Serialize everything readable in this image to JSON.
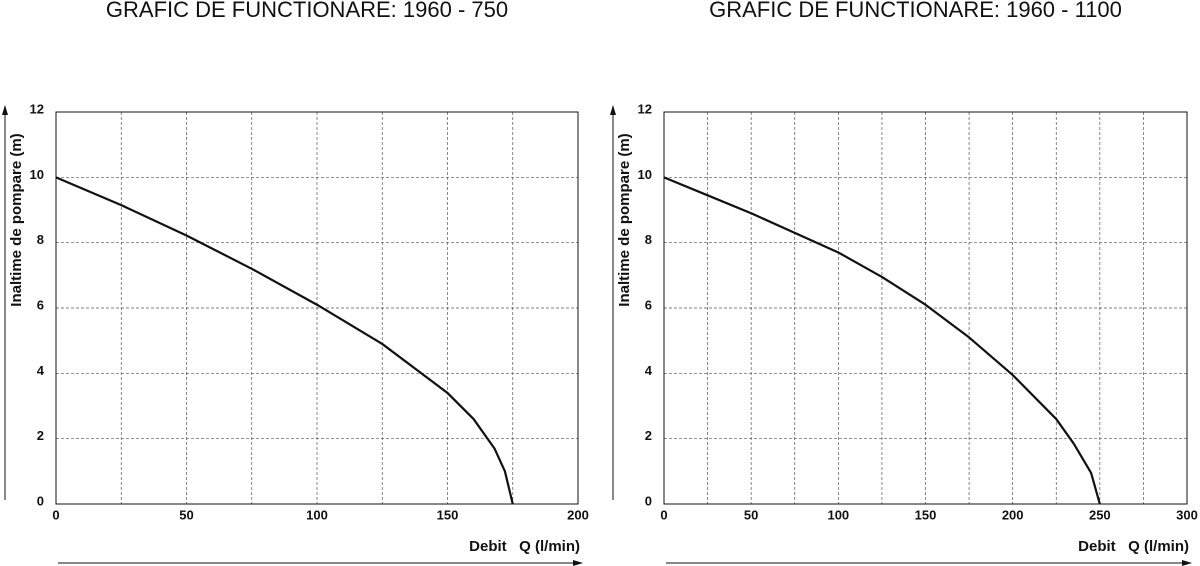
{
  "chart_data": [
    {
      "type": "line",
      "title": "GRAFIC DE FUNCTIONARE: 1960 - 750",
      "x_label": "Debit   Q (l/min)",
      "y_label": "Inaltime de pompare (m)",
      "x": [
        0,
        25,
        50,
        75,
        100,
        125,
        150,
        160,
        168,
        172,
        175
      ],
      "series": [
        {
          "name": "1960 - 750",
          "color": "#111111",
          "values": [
            10,
            9.15,
            8.22,
            7.2,
            6.1,
            4.9,
            3.4,
            2.6,
            1.7,
            1.0,
            0
          ]
        }
      ],
      "xlim": [
        0,
        200
      ],
      "xticks": [
        0,
        50,
        100,
        150,
        200
      ],
      "x_minor_grid": [
        25,
        75,
        125,
        175
      ],
      "ylim": [
        0,
        12
      ],
      "yticks": [
        0,
        2,
        4,
        6,
        8,
        10,
        12
      ],
      "grid": true
    },
    {
      "type": "line",
      "title": "GRAFIC DE FUNCTIONARE: 1960 - 1100",
      "x_label": "Debit   Q (l/min)",
      "y_label": "Inaltime de pompare (m)",
      "x": [
        0,
        25,
        50,
        75,
        100,
        125,
        150,
        175,
        200,
        225,
        235,
        245,
        250
      ],
      "series": [
        {
          "name": "1960 - 1100",
          "color": "#111111",
          "values": [
            10,
            9.45,
            8.9,
            8.3,
            7.7,
            6.95,
            6.1,
            5.1,
            3.95,
            2.6,
            1.85,
            0.95,
            0
          ]
        }
      ],
      "xlim": [
        0,
        300
      ],
      "xticks": [
        0,
        50,
        100,
        150,
        200,
        250,
        300
      ],
      "x_minor_grid": [
        25,
        75,
        125,
        175,
        225,
        275
      ],
      "ylim": [
        0,
        12
      ],
      "yticks": [
        0,
        2,
        4,
        6,
        8,
        10,
        12
      ],
      "grid": true
    }
  ]
}
